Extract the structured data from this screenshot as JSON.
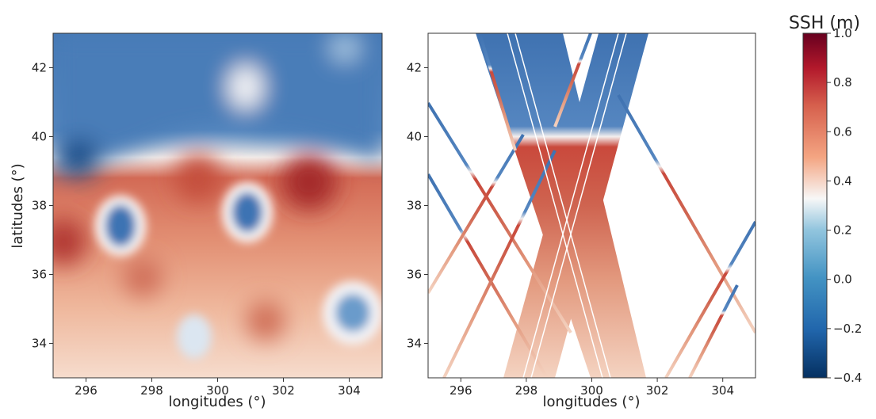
{
  "chart_data": [
    {
      "type": "heatmap",
      "xlabel": "longitudes (°)",
      "ylabel": "latitudes (°)",
      "xlim": [
        295,
        305
      ],
      "ylim": [
        33,
        43
      ],
      "xticks": [
        296,
        298,
        300,
        302,
        304
      ],
      "yticks": [
        34,
        36,
        38,
        40,
        42
      ]
    },
    {
      "type": "heatmap",
      "xlabel": "longitudes (°)",
      "xlim": [
        295,
        305
      ],
      "ylim": [
        33,
        43
      ],
      "xticks": [
        296,
        298,
        300,
        302,
        304
      ],
      "yticks": [
        34,
        36,
        38,
        40,
        42
      ],
      "colorbar": {
        "label": "SSH (m)",
        "lim": [
          -0.4,
          1.0
        ],
        "ticks": [
          {
            "value": -0.4,
            "label": "−0.4"
          },
          {
            "value": -0.2,
            "label": "−0.2"
          },
          {
            "value": 0.0,
            "label": "0.0"
          },
          0.2,
          0.4,
          0.6,
          0.8,
          {
            "value": 1.0,
            "label": "1.0"
          }
        ]
      }
    }
  ]
}
